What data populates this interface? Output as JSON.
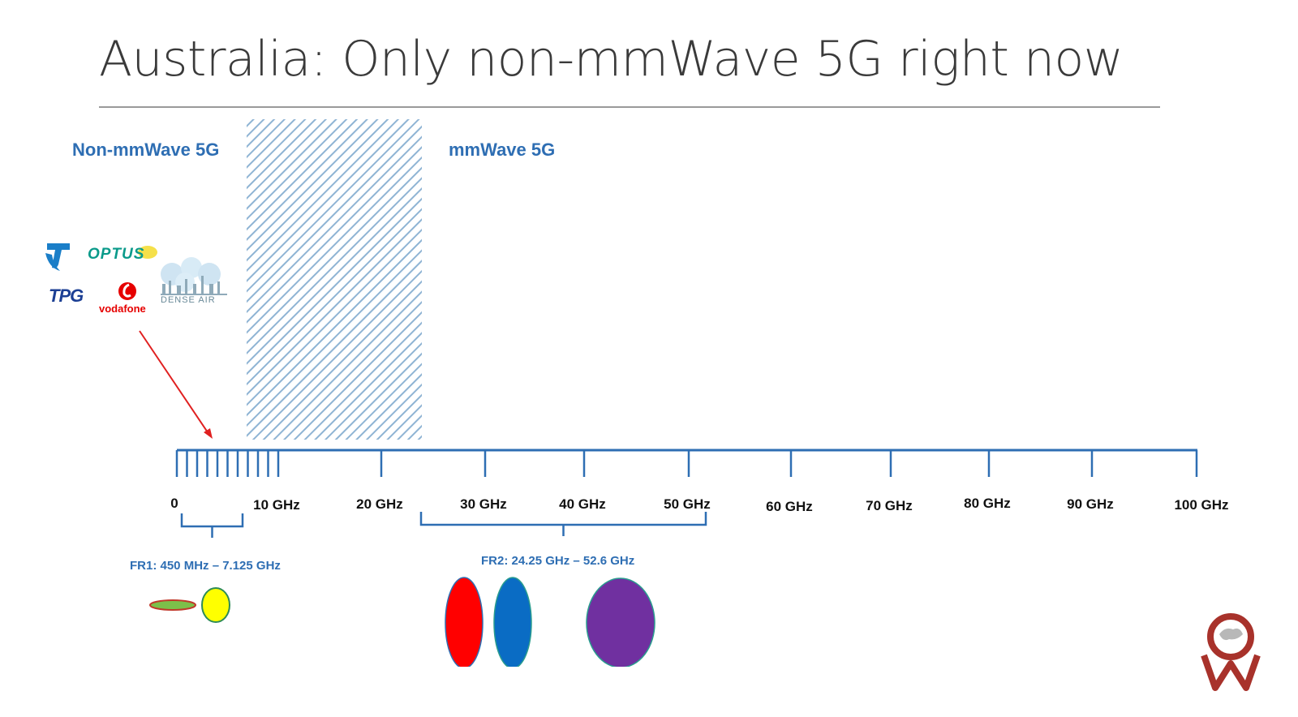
{
  "slide": {
    "title": "Australia: Only non-mmWave 5G right now"
  },
  "zones": {
    "non_mmwave_label": "Non-mmWave 5G",
    "mmwave_label": "mmWave 5G"
  },
  "axis": {
    "ticks": [
      {
        "value": 0,
        "label": "0"
      },
      {
        "value": 10,
        "label": "10 GHz"
      },
      {
        "value": 20,
        "label": "20 GHz"
      },
      {
        "value": 30,
        "label": "30 GHz"
      },
      {
        "value": 40,
        "label": "40 GHz"
      },
      {
        "value": 50,
        "label": "50 GHz"
      },
      {
        "value": 60,
        "label": "60 GHz"
      },
      {
        "value": 70,
        "label": "70 GHz"
      },
      {
        "value": 80,
        "label": "80 GHz"
      },
      {
        "value": 90,
        "label": "90 GHz"
      },
      {
        "value": 100,
        "label": "100 GHz"
      }
    ],
    "minor_tick_values": [
      0,
      1,
      2,
      3,
      4,
      5,
      6,
      7,
      8,
      9,
      10
    ]
  },
  "ranges": {
    "fr1": {
      "label": "FR1: 450 MHz – 7.125 GHz",
      "start_ghz": 0.45,
      "end_ghz": 7.125
    },
    "fr2": {
      "label": "FR2: 24.25 GHz – 52.6 GHz",
      "start_ghz": 24.25,
      "end_ghz": 52.6
    }
  },
  "operators": {
    "telstra_icon": "telstra-logo",
    "optus": "OPTUS",
    "tpg": "TPG",
    "vodafone": "vodafone",
    "dense_air": "DENSE AIR"
  },
  "colors": {
    "accent_blue": "#2e6eb3",
    "arrow_red": "#e02020",
    "hatch": "#8fb4d4",
    "blob_red": "#ff0000",
    "blob_blue": "#0a6cc4",
    "blob_purple": "#7030a0",
    "blob_yellow": "#ffff00",
    "blob_green": "#7cc04a"
  }
}
